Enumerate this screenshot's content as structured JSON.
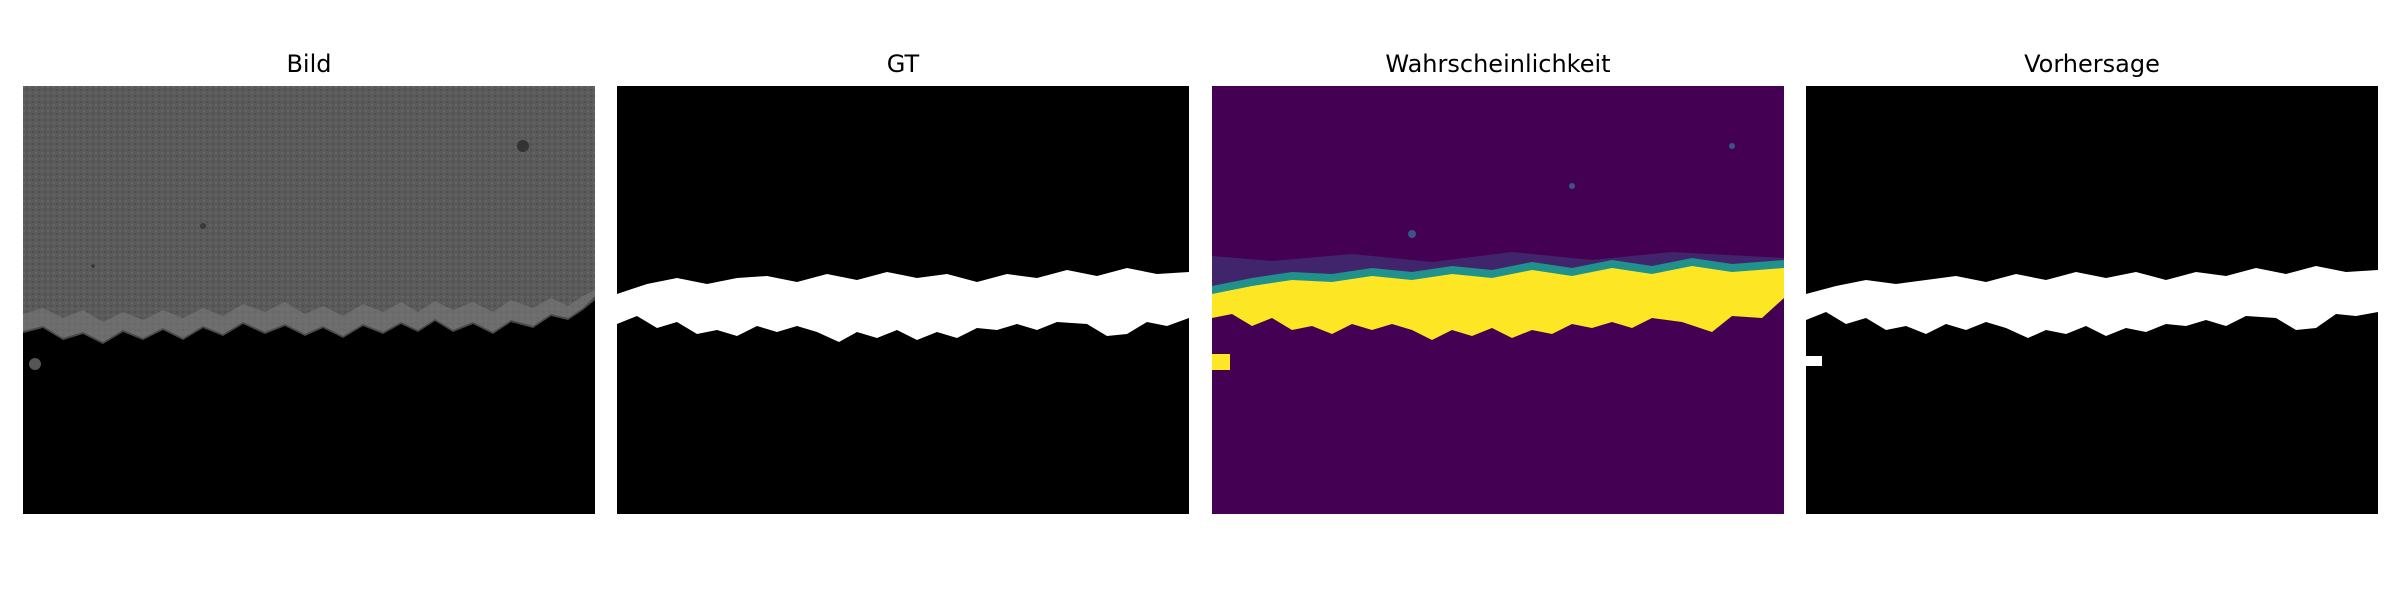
{
  "panels": [
    {
      "title": "Bild"
    },
    {
      "title": "GT"
    },
    {
      "title": "Wahrscheinlichkeit"
    },
    {
      "title": "Vorhersage"
    }
  ],
  "colors": {
    "background": "#000000",
    "mask": "#ffffff",
    "image_texture": "#5c5c5c",
    "probability_low": "#440154",
    "probability_mid": "#21918c",
    "probability_high": "#fde725"
  }
}
